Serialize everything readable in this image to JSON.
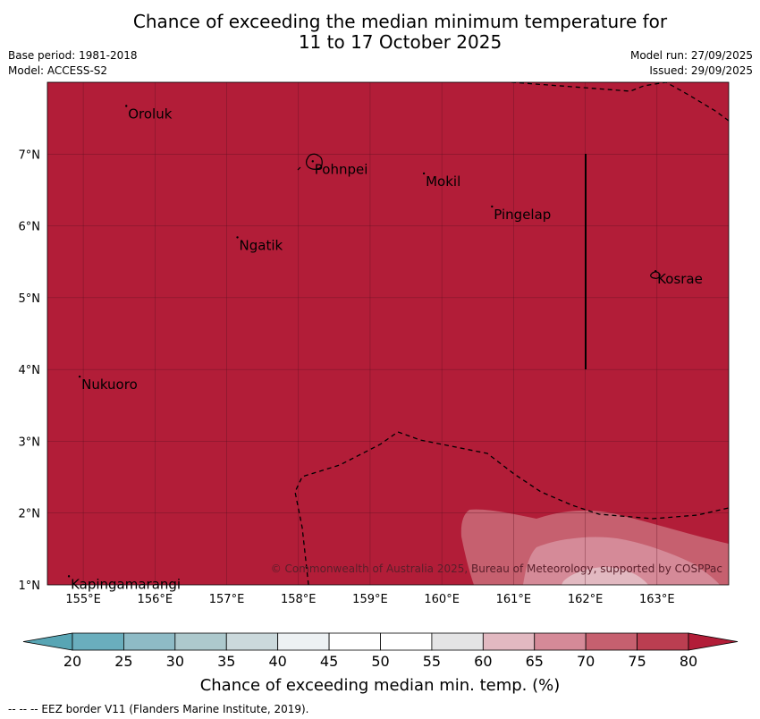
{
  "title": {
    "line1": "Chance of exceeding the median minimum temperature for",
    "line2": "11 to 17 October 2025"
  },
  "meta": {
    "base_period": "Base period: 1981-2018",
    "model": "Model: ACCESS-S2",
    "model_run": "Model run: 27/09/2025",
    "issued": "Issued: 29/09/2025"
  },
  "axes": {
    "lon_labels": [
      "155°E",
      "156°E",
      "157°E",
      "158°E",
      "159°E",
      "160°E",
      "161°E",
      "162°E",
      "163°E"
    ],
    "lon_values": [
      155,
      156,
      157,
      158,
      159,
      160,
      161,
      162,
      163
    ],
    "lat_labels": [
      "1°N",
      "2°N",
      "3°N",
      "4°N",
      "5°N",
      "6°N",
      "7°N"
    ],
    "lat_values": [
      1,
      2,
      3,
      4,
      5,
      6,
      7
    ],
    "lon_range": [
      154.5,
      164.0
    ],
    "lat_range": [
      1.0,
      8.0
    ]
  },
  "places": [
    {
      "name": "Oroluk",
      "lon": 155.6,
      "lat": 7.62
    },
    {
      "name": "Pohnpei",
      "lon": 158.2,
      "lat": 6.85
    },
    {
      "name": "Mokil",
      "lon": 159.75,
      "lat": 6.68
    },
    {
      "name": "Pingelap",
      "lon": 160.7,
      "lat": 6.22
    },
    {
      "name": "Ngatik",
      "lon": 157.15,
      "lat": 5.79
    },
    {
      "name": "Kosrae",
      "lon": 162.98,
      "lat": 5.32
    },
    {
      "name": "Nukuoro",
      "lon": 154.95,
      "lat": 3.85
    },
    {
      "name": "Kapingamarangi",
      "lon": 154.8,
      "lat": 1.07
    }
  ],
  "copyright": "© Commonwealth of Australia 2025, Bureau of Meteorology, supported by COSPPac",
  "colorbar": {
    "ticks": [
      "20",
      "25",
      "30",
      "35",
      "40",
      "45",
      "50",
      "55",
      "60",
      "65",
      "70",
      "75",
      "80"
    ],
    "colors": [
      "#6aaebd",
      "#8ebbc6",
      "#adc9cd",
      "#cbd9dc",
      "#edf1f3",
      "#ffffff",
      "#ffffff",
      "#e4e4e5",
      "#e2b9c1",
      "#d58a98",
      "#c6606f",
      "#bb3e51",
      "#b21d38"
    ],
    "under_color": "#58a5b4",
    "over_color": "#b21d38",
    "label": "Chance of exceeding median min. temp. (%)"
  },
  "map_colors": {
    "background": "#b21d38",
    "band_70": "#c6606f",
    "band_65": "#d58a98",
    "band_60": "#e2b9c1"
  },
  "footer": "--  --  -- EEZ border V11 (Flanders Marine Institute, 2019)."
}
